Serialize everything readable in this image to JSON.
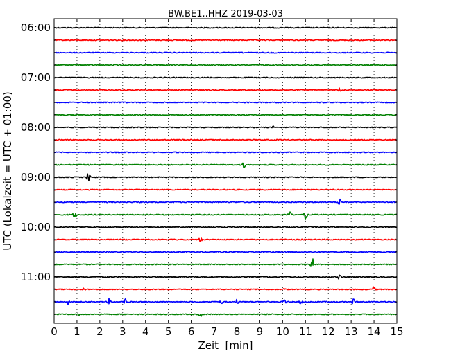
{
  "chart_data": {
    "type": "line",
    "title": "BW.BE1..HHZ 2019-03-03",
    "xlabel": "Zeit  [min]",
    "ylabel": "UTC (Lokalzeit = UTC + 01:00)",
    "xlim": [
      0,
      15
    ],
    "x_ticks": [
      "0",
      "1",
      "2",
      "3",
      "4",
      "5",
      "6",
      "7",
      "8",
      "9",
      "10",
      "11",
      "12",
      "13",
      "14",
      "15"
    ],
    "y_tick_labels": [
      "06:00",
      "07:00",
      "08:00",
      "09:00",
      "10:00",
      "11:00"
    ],
    "grid": "vertical dotted",
    "series_colors": [
      "#000000",
      "#ff0000",
      "#0000ff",
      "#008000"
    ],
    "traces": [
      {
        "start": "06:00",
        "color": "#000000",
        "events": []
      },
      {
        "start": "06:15",
        "color": "#ff0000",
        "events": []
      },
      {
        "start": "06:30",
        "color": "#0000ff",
        "events": []
      },
      {
        "start": "06:45",
        "color": "#008000",
        "events": []
      },
      {
        "start": "07:00",
        "color": "#000000",
        "events": []
      },
      {
        "start": "07:15",
        "color": "#ff0000",
        "events": [
          {
            "t": 12.5,
            "amp": 4
          }
        ]
      },
      {
        "start": "07:30",
        "color": "#0000ff",
        "events": []
      },
      {
        "start": "07:45",
        "color": "#008000",
        "events": []
      },
      {
        "start": "08:00",
        "color": "#000000",
        "events": [
          {
            "t": 9.6,
            "amp": 2
          }
        ]
      },
      {
        "start": "08:15",
        "color": "#ff0000",
        "events": []
      },
      {
        "start": "08:30",
        "color": "#0000ff",
        "events": []
      },
      {
        "start": "08:45",
        "color": "#008000",
        "events": [
          {
            "t": 8.3,
            "amp": 5
          }
        ]
      },
      {
        "start": "09:00",
        "color": "#000000",
        "events": [
          {
            "t": 1.5,
            "amp": 8
          }
        ]
      },
      {
        "start": "09:15",
        "color": "#ff0000",
        "events": []
      },
      {
        "start": "09:30",
        "color": "#0000ff",
        "events": [
          {
            "t": 12.5,
            "amp": 5
          }
        ]
      },
      {
        "start": "09:45",
        "color": "#008000",
        "events": [
          {
            "t": 0.9,
            "amp": 7
          },
          {
            "t": 10.3,
            "amp": 7
          },
          {
            "t": 11.0,
            "amp": 8
          }
        ]
      },
      {
        "start": "10:00",
        "color": "#000000",
        "events": []
      },
      {
        "start": "10:15",
        "color": "#ff0000",
        "events": [
          {
            "t": 6.4,
            "amp": 5
          }
        ]
      },
      {
        "start": "10:30",
        "color": "#0000ff",
        "events": []
      },
      {
        "start": "10:45",
        "color": "#008000",
        "events": [
          {
            "t": 11.3,
            "amp": 10
          }
        ]
      },
      {
        "start": "11:00",
        "color": "#000000",
        "events": [
          {
            "t": 12.5,
            "amp": 5
          }
        ]
      },
      {
        "start": "11:15",
        "color": "#ff0000",
        "events": [
          {
            "t": 1.3,
            "amp": 3
          },
          {
            "t": 10.1,
            "amp": 2
          },
          {
            "t": 14.0,
            "amp": 5
          }
        ]
      },
      {
        "start": "11:30",
        "color": "#0000ff",
        "events": [
          {
            "t": 0.6,
            "amp": 4
          },
          {
            "t": 2.4,
            "amp": 5
          },
          {
            "t": 3.1,
            "amp": 6
          },
          {
            "t": 7.3,
            "amp": 4
          },
          {
            "t": 8.0,
            "amp": 4
          },
          {
            "t": 10.1,
            "amp": 5
          },
          {
            "t": 10.8,
            "amp": 4
          },
          {
            "t": 13.1,
            "amp": 5
          }
        ]
      },
      {
        "start": "11:45",
        "color": "#008000",
        "events": [
          {
            "t": 1.1,
            "amp": 2
          },
          {
            "t": 6.4,
            "amp": 4
          }
        ]
      }
    ]
  }
}
